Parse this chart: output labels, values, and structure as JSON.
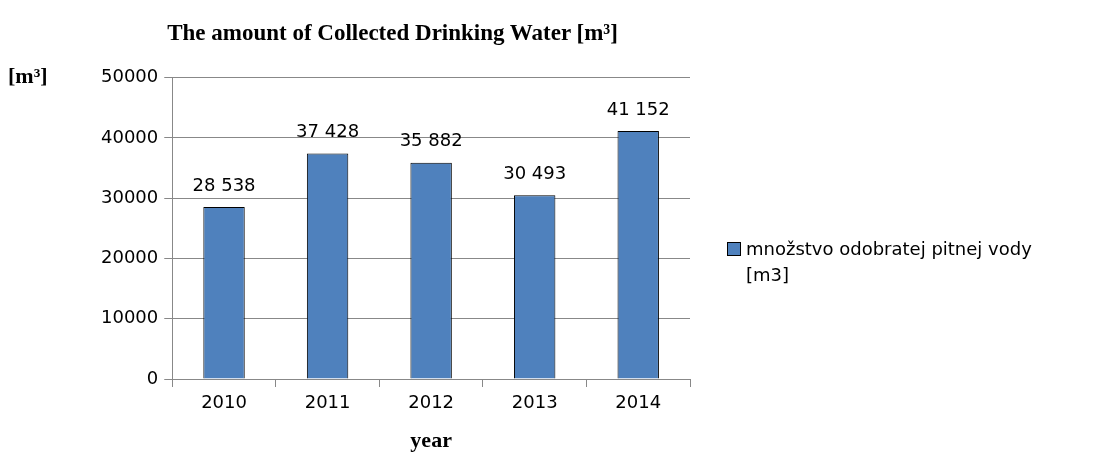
{
  "chart_data": {
    "type": "bar",
    "title": "The amount of Collected Drinking Water [m³]",
    "ylabel": "[m³]",
    "xlabel": "year",
    "categories": [
      "2010",
      "2011",
      "2012",
      "2013",
      "2014"
    ],
    "series": [
      {
        "name": "množstvo odobratej pitnej vody [m3]",
        "color": "#4f81bd",
        "values": [
          28538,
          37428,
          35882,
          30493,
          41152
        ],
        "value_labels": [
          "28 538",
          "37 428",
          "35 882",
          "30 493",
          "41 152"
        ]
      }
    ],
    "ylim": [
      0,
      50000
    ],
    "yticks": [
      0,
      10000,
      20000,
      30000,
      40000,
      50000
    ],
    "grid": "y",
    "legend": "right"
  }
}
